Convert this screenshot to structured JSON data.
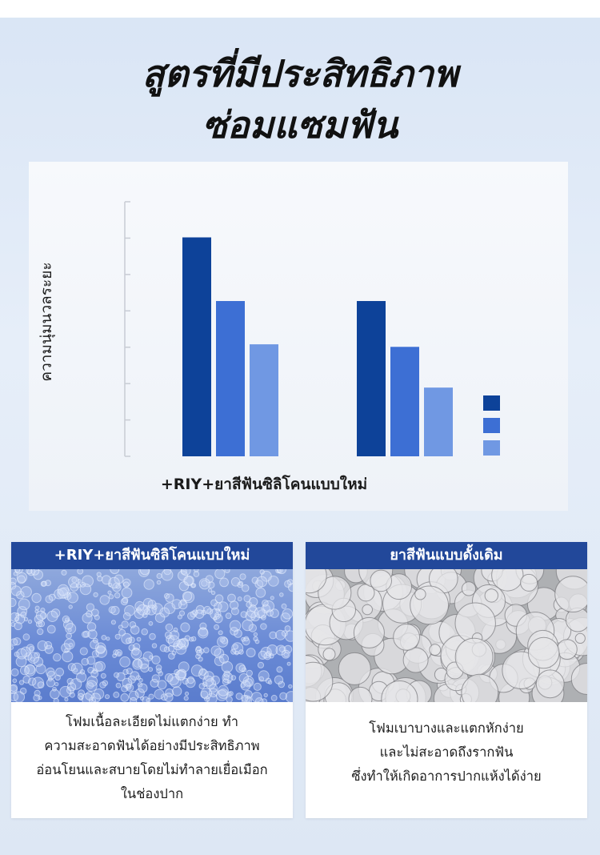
{
  "headline": {
    "line1": "สูตรที่มีประสิทธิภาพ",
    "line2": "ซ่อมแซมฟัน"
  },
  "chart_data": {
    "type": "bar",
    "categories": [
      "+RIY+ยาสีฟันซิลิโคนแบบใหม่",
      ""
    ],
    "series": [
      {
        "values": [
          86,
          61
        ],
        "color": "#0d4299"
      },
      {
        "values": [
          61,
          43
        ],
        "color": "#3d6fd4"
      },
      {
        "values": [
          44,
          27
        ],
        "color": "#7098e3"
      }
    ],
    "ylabel": "ความนุ่มนวลระยะ",
    "xlabel": "+RIY+ยาสีฟันซิลิโคนแบบใหม่",
    "ylim": [
      0,
      100
    ],
    "grid": false,
    "legend": "right"
  },
  "panels": {
    "left": {
      "title": "+RIY+ยาสีฟันซิลิโคนแบบใหม่",
      "lines": [
        "โฟมเนื้อละเอียดไม่แตกง่าย ทำ",
        "ความสะอาดฟันได้อย่างมีประสิทธิภาพ",
        "อ่อนโยนและสบายโดยไม่ทำลายเยื่อเมือก",
        "ในช่องปาก"
      ]
    },
    "right": {
      "title": "ยาสีฟันแบบดั้งเดิม",
      "lines": [
        "โฟมเบาบางและแตกหักง่าย",
        "และไม่สะอาดถึงรากฟัน",
        "ซึ่งทำให้เกิดอาการปากแห้งได้ง่าย"
      ]
    }
  }
}
